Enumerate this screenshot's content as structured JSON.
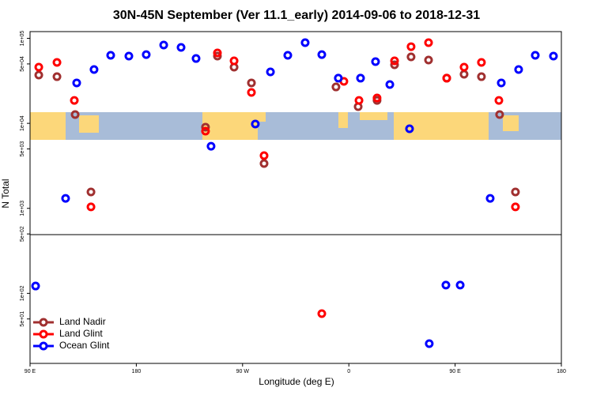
{
  "chart_data": {
    "type": "scatter",
    "title": "30N-45N September (Ver 11.1_early)   2014-09-06 to 2018-12-31",
    "x_label": "Longitude (deg E)",
    "y_label": "N Total",
    "xlim": [
      90,
      540
    ],
    "xticks": [
      {
        "value": 90,
        "label": "90 E"
      },
      180,
      {
        "value": 270,
        "label": "90 W"
      },
      {
        "value": 360,
        "label": "0"
      },
      {
        "value": 450,
        "label": "90 E"
      },
      {
        "value": 540,
        "label": "180"
      }
    ],
    "ylim": [
      15,
      120000
    ],
    "ylog": true,
    "yticks": [
      {
        "value": 100000,
        "label": "1e+05"
      },
      {
        "value": 50000,
        "label": "5e+04"
      },
      {
        "value": 10000,
        "label": "1e+04"
      },
      {
        "value": 5000,
        "label": "5e+03"
      },
      {
        "value": 1000,
        "label": "1e+03"
      },
      {
        "value": 500,
        "label": "5e+02"
      },
      {
        "value": 100,
        "label": "1e+02"
      },
      {
        "value": 50,
        "label": "5e+01"
      }
    ],
    "legend": "bottom-left",
    "series": [
      {
        "name": "Land Nadir",
        "color": "#a03030",
        "x": [
          97.4,
          112.8,
          128.2,
          141.6,
          238.6,
          248.7,
          262.8,
          277.5,
          288.2,
          349.1,
          367.9,
          383.9,
          398.7,
          412.7,
          427.5,
          442.9,
          457.6,
          472.3,
          487.7,
          501.1
        ],
        "values": [
          37000,
          35400,
          12700,
          1560,
          9020,
          61800,
          45800,
          29900,
          3370,
          26800,
          15700,
          18600,
          48900,
          60500,
          55500,
          34000,
          37800,
          35400,
          12700,
          1560
        ]
      },
      {
        "name": "Land Glint",
        "color": "#ff0000",
        "x": [
          97.4,
          112.8,
          127.5,
          141.6,
          238.6,
          248.7,
          262.8,
          277.5,
          288.2,
          337.1,
          355.8,
          368.6,
          383.9,
          398.7,
          412.7,
          427.5,
          442.9,
          457.6,
          472.3,
          487.1,
          501.1
        ],
        "values": [
          45800,
          52100,
          18600,
          1040,
          8090,
          67300,
          54300,
          23100,
          4170,
          57.7,
          31200,
          18600,
          19900,
          54300,
          79800,
          88900,
          34000,
          45800,
          52100,
          18600,
          1040
        ]
      },
      {
        "name": "Ocean Glint",
        "color": "#0000ff",
        "x": [
          94.7,
          120.1,
          129.5,
          144.2,
          158.3,
          173.7,
          188.4,
          203.2,
          217.9,
          230.6,
          243.3,
          280.8,
          293.6,
          308.3,
          323.0,
          337.1,
          351.1,
          369.9,
          382.6,
          394.7,
          411.4,
          428.1,
          442.2,
          454.3,
          479.7,
          489.1,
          503.8,
          517.9,
          533.3
        ],
        "values": [
          122,
          1310,
          29900,
          43000,
          63100,
          61800,
          64400,
          83400,
          78200,
          57900,
          5380,
          9820,
          40300,
          63100,
          88900,
          64400,
          34000,
          34000,
          53200,
          28600,
          8630,
          25.6,
          125,
          125,
          1310,
          29900,
          43000,
          63100,
          61800
        ]
      }
    ]
  }
}
